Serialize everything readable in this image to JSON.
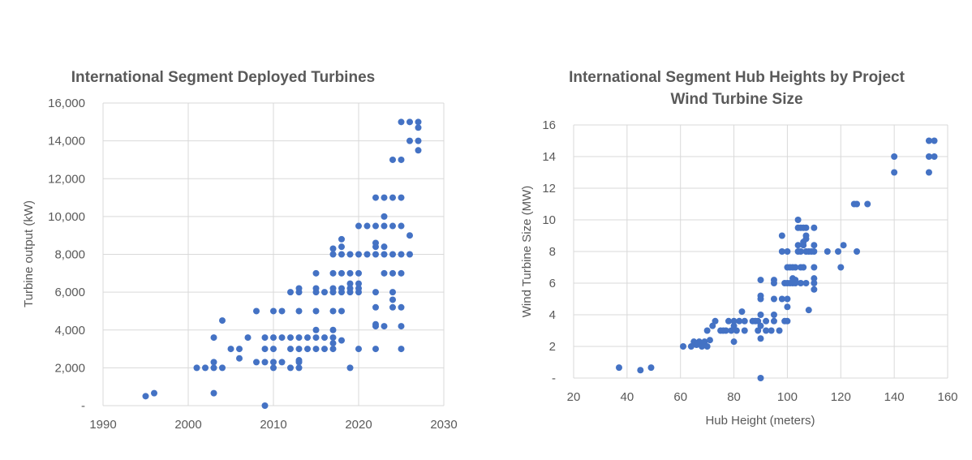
{
  "chart_data": [
    {
      "type": "scatter",
      "title": "International Segment Deployed Turbines",
      "xlabel": "",
      "ylabel": "Turbine output (kW)",
      "xlim": [
        1990,
        2030
      ],
      "ylim": [
        0,
        16000
      ],
      "x_ticks": [
        1990,
        2000,
        2010,
        2020,
        2030
      ],
      "x_tick_labels": [
        "1990",
        "2000",
        "2010",
        "2020",
        "2030"
      ],
      "y_ticks": [
        0,
        2000,
        4000,
        6000,
        8000,
        10000,
        12000,
        14000,
        16000
      ],
      "y_tick_labels": [
        "-",
        "2,000",
        "4,000",
        "6,000",
        "8,000",
        "10,000",
        "12,000",
        "14,000",
        "16,000"
      ],
      "grid": true,
      "color": "#4472c4",
      "series": [
        {
          "points": [
            [
              1995,
              500
            ],
            [
              1996,
              660
            ],
            [
              2001,
              2000
            ],
            [
              2002,
              2000
            ],
            [
              2003,
              2000
            ],
            [
              2003,
              2300
            ],
            [
              2003,
              3600
            ],
            [
              2003,
              660
            ],
            [
              2004,
              2000
            ],
            [
              2004,
              4500
            ],
            [
              2005,
              3000
            ],
            [
              2006,
              2500
            ],
            [
              2006,
              3000
            ],
            [
              2007,
              3600
            ],
            [
              2008,
              2300
            ],
            [
              2008,
              5000
            ],
            [
              2009,
              0
            ],
            [
              2009,
              2300
            ],
            [
              2009,
              3000
            ],
            [
              2009,
              3600
            ],
            [
              2010,
              2000
            ],
            [
              2010,
              2300
            ],
            [
              2010,
              3000
            ],
            [
              2010,
              3600
            ],
            [
              2010,
              5000
            ],
            [
              2011,
              2300
            ],
            [
              2011,
              3600
            ],
            [
              2011,
              5000
            ],
            [
              2012,
              2000
            ],
            [
              2012,
              3000
            ],
            [
              2012,
              3600
            ],
            [
              2012,
              6000
            ],
            [
              2013,
              2000
            ],
            [
              2013,
              2300
            ],
            [
              2013,
              2400
            ],
            [
              2013,
              3000
            ],
            [
              2013,
              3600
            ],
            [
              2013,
              5000
            ],
            [
              2013,
              6000
            ],
            [
              2013,
              6200
            ],
            [
              2014,
              3000
            ],
            [
              2014,
              3600
            ],
            [
              2015,
              3000
            ],
            [
              2015,
              3600
            ],
            [
              2015,
              4000
            ],
            [
              2015,
              5000
            ],
            [
              2015,
              6000
            ],
            [
              2015,
              6200
            ],
            [
              2015,
              7000
            ],
            [
              2016,
              3000
            ],
            [
              2016,
              3600
            ],
            [
              2016,
              6000
            ],
            [
              2017,
              3000
            ],
            [
              2017,
              3300
            ],
            [
              2017,
              3600
            ],
            [
              2017,
              4000
            ],
            [
              2017,
              5000
            ],
            [
              2017,
              6000
            ],
            [
              2017,
              6200
            ],
            [
              2017,
              7000
            ],
            [
              2017,
              8000
            ],
            [
              2017,
              8300
            ],
            [
              2018,
              3450
            ],
            [
              2018,
              5000
            ],
            [
              2018,
              6000
            ],
            [
              2018,
              6200
            ],
            [
              2018,
              7000
            ],
            [
              2018,
              8000
            ],
            [
              2018,
              8400
            ],
            [
              2018,
              8800
            ],
            [
              2019,
              2000
            ],
            [
              2019,
              6000
            ],
            [
              2019,
              6200
            ],
            [
              2019,
              6450
            ],
            [
              2019,
              7000
            ],
            [
              2019,
              8000
            ],
            [
              2020,
              3000
            ],
            [
              2020,
              6000
            ],
            [
              2020,
              6200
            ],
            [
              2020,
              6450
            ],
            [
              2020,
              7000
            ],
            [
              2020,
              8000
            ],
            [
              2020,
              9500
            ],
            [
              2021,
              8000
            ],
            [
              2021,
              9500
            ],
            [
              2022,
              3000
            ],
            [
              2022,
              4200
            ],
            [
              2022,
              4300
            ],
            [
              2022,
              5200
            ],
            [
              2022,
              6000
            ],
            [
              2022,
              8000
            ],
            [
              2022,
              8400
            ],
            [
              2022,
              8600
            ],
            [
              2022,
              9500
            ],
            [
              2022,
              11000
            ],
            [
              2023,
              4200
            ],
            [
              2023,
              7000
            ],
            [
              2023,
              8000
            ],
            [
              2023,
              8400
            ],
            [
              2023,
              9500
            ],
            [
              2023,
              10000
            ],
            [
              2023,
              11000
            ],
            [
              2024,
              5200
            ],
            [
              2024,
              5600
            ],
            [
              2024,
              6000
            ],
            [
              2024,
              7000
            ],
            [
              2024,
              8000
            ],
            [
              2024,
              9500
            ],
            [
              2024,
              11000
            ],
            [
              2024,
              13000
            ],
            [
              2025,
              3000
            ],
            [
              2025,
              4200
            ],
            [
              2025,
              5200
            ],
            [
              2025,
              7000
            ],
            [
              2025,
              8000
            ],
            [
              2025,
              9500
            ],
            [
              2025,
              11000
            ],
            [
              2025,
              13000
            ],
            [
              2025,
              15000
            ],
            [
              2026,
              8000
            ],
            [
              2026,
              9000
            ],
            [
              2026,
              14000
            ],
            [
              2026,
              15000
            ],
            [
              2027,
              13500
            ],
            [
              2027,
              14000
            ],
            [
              2027,
              14700
            ],
            [
              2027,
              15000
            ]
          ]
        }
      ]
    },
    {
      "type": "scatter",
      "title": "International Segment Hub Heights by Project",
      "subtitle": "Wind Turbine Size",
      "xlabel": "Hub Height (meters)",
      "ylabel": "Wind Turbine Size (MW)",
      "xlim": [
        20,
        160
      ],
      "ylim": [
        0,
        16
      ],
      "x_ticks": [
        20,
        40,
        60,
        80,
        100,
        120,
        140,
        160
      ],
      "x_tick_labels": [
        "20",
        "40",
        "60",
        "80",
        "100",
        "120",
        "140",
        "160"
      ],
      "y_ticks": [
        0,
        2,
        4,
        6,
        8,
        10,
        12,
        14,
        16
      ],
      "y_tick_labels": [
        "-",
        "2",
        "4",
        "6",
        "8",
        "10",
        "12",
        "14",
        "16"
      ],
      "grid": true,
      "color": "#4472c4",
      "series": [
        {
          "points": [
            [
              37,
              0.66
            ],
            [
              45,
              0.5
            ],
            [
              49,
              0.66
            ],
            [
              61,
              2.0
            ],
            [
              64,
              2.0
            ],
            [
              65,
              2.3
            ],
            [
              66,
              2.1
            ],
            [
              67,
              2.3
            ],
            [
              68,
              2.0
            ],
            [
              69,
              2.3
            ],
            [
              70,
              2.0
            ],
            [
              70,
              3.0
            ],
            [
              71,
              2.4
            ],
            [
              72,
              3.3
            ],
            [
              73,
              3.6
            ],
            [
              75,
              3.0
            ],
            [
              76,
              3.0
            ],
            [
              77,
              3.0
            ],
            [
              78,
              3.6
            ],
            [
              79,
              3.0
            ],
            [
              80,
              3.6
            ],
            [
              80,
              3.3
            ],
            [
              80,
              2.3
            ],
            [
              81,
              3.0
            ],
            [
              82,
              3.6
            ],
            [
              83,
              4.2
            ],
            [
              84,
              3.0
            ],
            [
              84,
              3.6
            ],
            [
              87,
              3.6
            ],
            [
              88,
              3.6
            ],
            [
              89,
              3.0
            ],
            [
              89,
              3.6
            ],
            [
              90,
              4.0
            ],
            [
              90,
              3.3
            ],
            [
              90,
              2.5
            ],
            [
              90,
              5.0
            ],
            [
              90,
              5.2
            ],
            [
              90,
              6.2
            ],
            [
              90,
              0
            ],
            [
              92,
              3.0
            ],
            [
              92,
              3.6
            ],
            [
              94,
              3.0
            ],
            [
              95,
              3.6
            ],
            [
              95,
              4.0
            ],
            [
              95,
              5.0
            ],
            [
              95,
              6.0
            ],
            [
              95,
              6.2
            ],
            [
              97,
              3.0
            ],
            [
              98,
              5.0
            ],
            [
              98,
              8.0
            ],
            [
              98,
              9.0
            ],
            [
              99,
              3.6
            ],
            [
              99,
              6.0
            ],
            [
              100,
              3.6
            ],
            [
              100,
              4.5
            ],
            [
              100,
              5.0
            ],
            [
              100,
              6.0
            ],
            [
              100,
              7.0
            ],
            [
              100,
              8.0
            ],
            [
              101,
              6.0
            ],
            [
              101,
              7.0
            ],
            [
              102,
              6.0
            ],
            [
              102,
              6.3
            ],
            [
              102,
              7.0
            ],
            [
              103,
              6.0
            ],
            [
              103,
              6.2
            ],
            [
              103,
              7.0
            ],
            [
              104,
              8.0
            ],
            [
              104,
              8.4
            ],
            [
              104,
              9.5
            ],
            [
              104,
              10.0
            ],
            [
              105,
              6.0
            ],
            [
              105,
              7.0
            ],
            [
              105,
              8.0
            ],
            [
              105,
              9.5
            ],
            [
              106,
              7.0
            ],
            [
              106,
              8.4
            ],
            [
              106,
              8.6
            ],
            [
              106,
              9.5
            ],
            [
              107,
              6.0
            ],
            [
              107,
              8.0
            ],
            [
              107,
              8.8
            ],
            [
              107,
              9.0
            ],
            [
              107,
              9.5
            ],
            [
              108,
              8.0
            ],
            [
              108,
              4.3
            ],
            [
              109,
              8.0
            ],
            [
              110,
              5.6
            ],
            [
              110,
              6.0
            ],
            [
              110,
              6.3
            ],
            [
              110,
              7.0
            ],
            [
              110,
              8.0
            ],
            [
              110,
              8.4
            ],
            [
              110,
              9.5
            ],
            [
              115,
              8.0
            ],
            [
              119,
              8.0
            ],
            [
              120,
              7.0
            ],
            [
              121,
              8.4
            ],
            [
              126,
              8.0
            ],
            [
              125,
              11.0
            ],
            [
              126,
              11.0
            ],
            [
              130,
              11.0
            ],
            [
              140,
              13.0
            ],
            [
              140,
              14.0
            ],
            [
              153,
              13.0
            ],
            [
              153,
              14.0
            ],
            [
              153,
              15.0
            ],
            [
              155,
              14.0
            ],
            [
              155,
              15.0
            ]
          ]
        }
      ]
    }
  ]
}
